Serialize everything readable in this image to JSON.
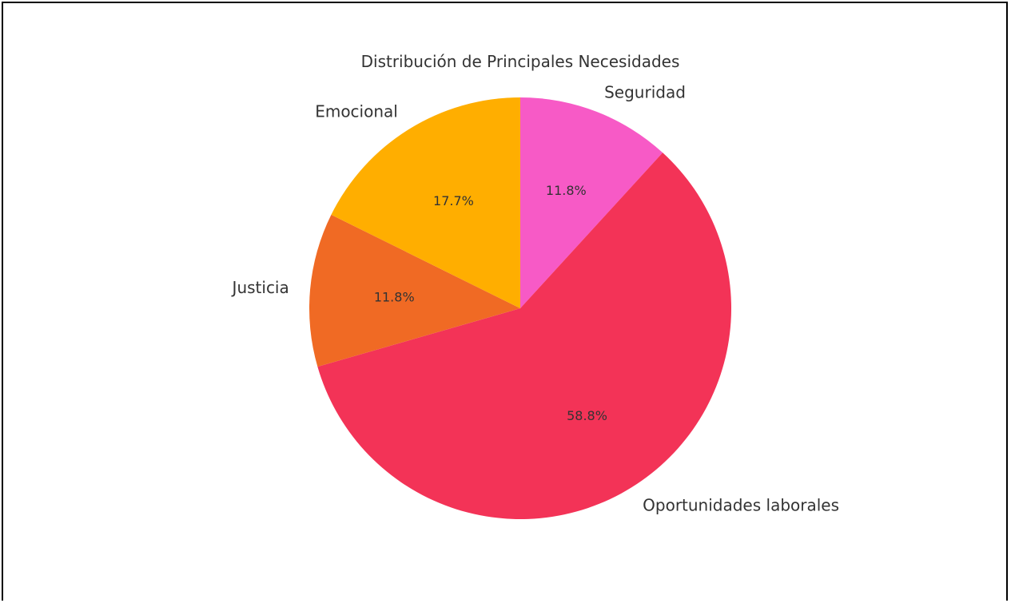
{
  "chart_data": {
    "type": "pie",
    "title": "Distribución de Principales Necesidades",
    "categories": [
      "Seguridad",
      "Oportunidades laborales",
      "Justicia",
      "Emocional"
    ],
    "values": [
      11.8,
      58.8,
      11.8,
      17.7
    ],
    "value_labels": [
      "11.8%",
      "58.8%",
      "11.8%",
      "17.7%"
    ],
    "colors": [
      "#f75ac6",
      "#f33357",
      "#f06a24",
      "#ffae00"
    ],
    "start_angle_deg": 90,
    "direction": "clockwise",
    "legend": "none"
  }
}
